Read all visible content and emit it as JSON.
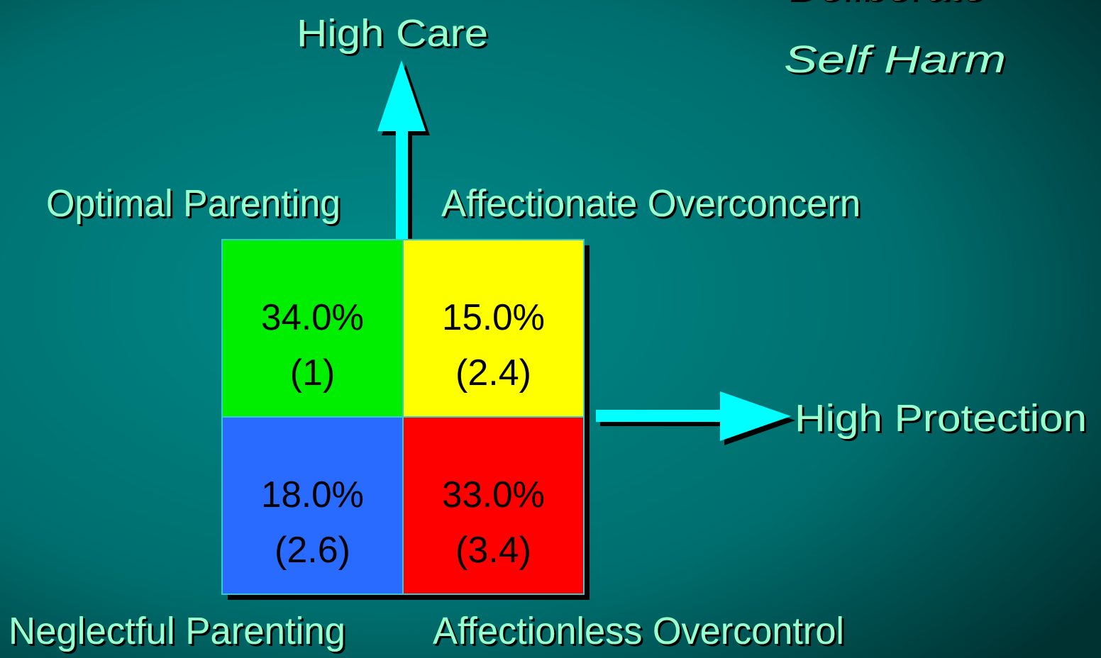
{
  "title": {
    "line1": "Deliberate",
    "line2": "Self Harm"
  },
  "axes": {
    "vertical": "High Care",
    "horizontal": "High Protection"
  },
  "quadrant_labels": {
    "top_left": "Optimal Parenting",
    "top_right": "Affectionate Overconcern",
    "bottom_left": "Neglectful Parenting",
    "bottom_right": "Affectionless Overcontrol"
  },
  "cells": [
    {
      "percent": "34.0%",
      "ratio": "(1)",
      "color": "#00ee00"
    },
    {
      "percent": "15.0%",
      "ratio": "(2.4)",
      "color": "#ffff00"
    },
    {
      "percent": "18.0%",
      "ratio": "(2.6)",
      "color": "#2a6bff"
    },
    {
      "percent": "33.0%",
      "ratio": "(3.4)",
      "color": "#ff0000"
    }
  ]
}
